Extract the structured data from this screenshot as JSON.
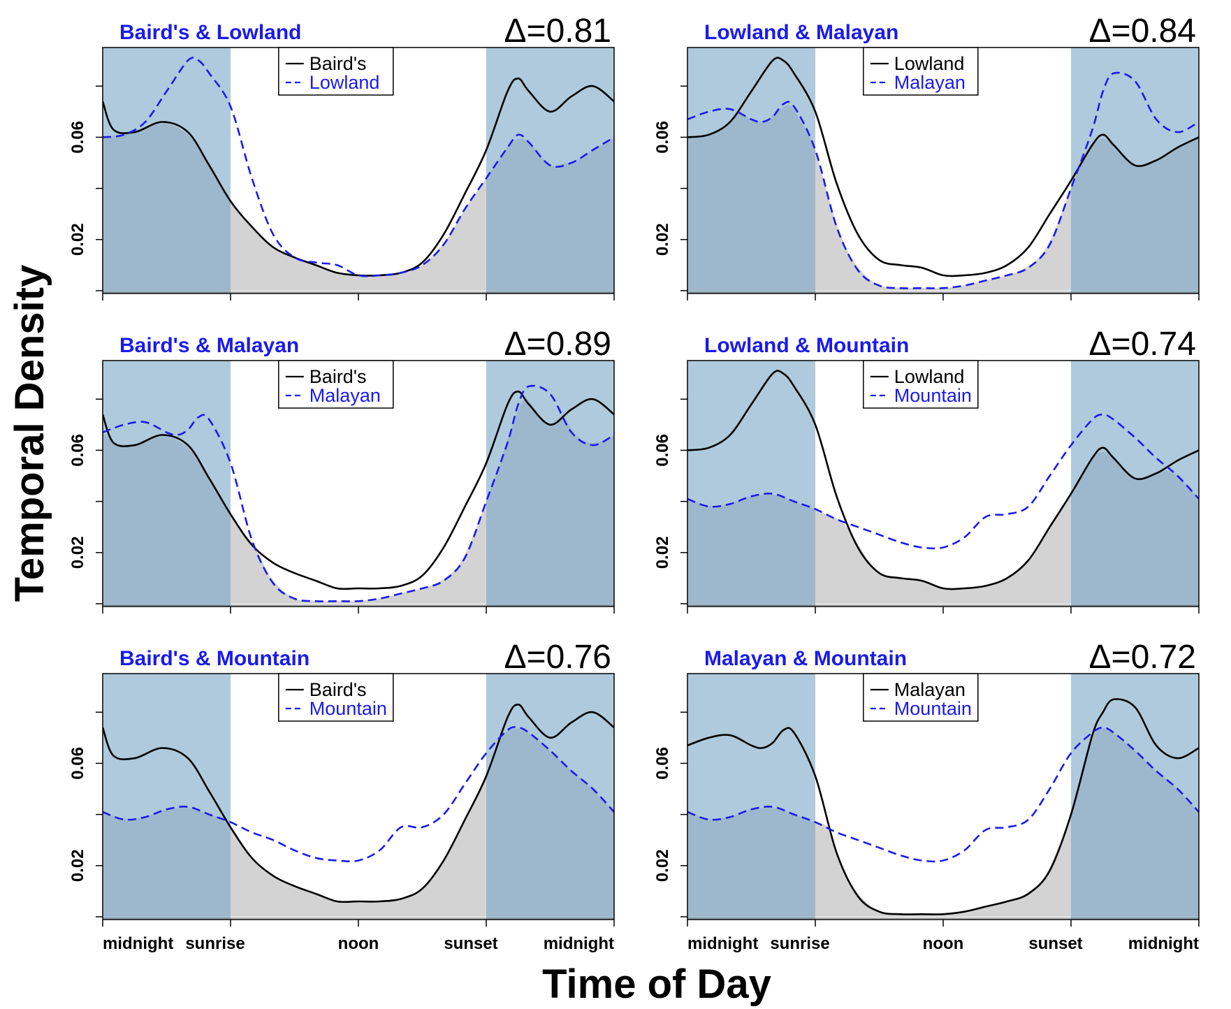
{
  "figure": {
    "ylabel": "Temporal Density",
    "xlabel": "Time of Day",
    "x_tick_labels": [
      "midnight",
      "sunrise",
      "noon",
      "sunset",
      "midnight"
    ],
    "y_tick_labels": [
      "0.02",
      "0.06"
    ]
  },
  "colors": {
    "night_shade": "#aecadc",
    "overlap_fill": "#d3d3d3",
    "overlap_night": "#9db8cc",
    "line1": "#000000",
    "line2": "#1a1aee",
    "title": "#1a1aee"
  },
  "chart_data": [
    {
      "type": "line",
      "title": "Baird's & Lowland",
      "annotation": "Δ=0.81",
      "legend_position": "top-center",
      "x_ticks": [
        0,
        6,
        12,
        18,
        24
      ],
      "x_tick_labels": [
        "midnight",
        "sunrise",
        "noon",
        "sunset",
        "midnight"
      ],
      "y_ticks": [
        0.02,
        0.06
      ],
      "ylim": [
        0,
        0.094
      ],
      "night_shading": [
        [
          0,
          6
        ],
        [
          18,
          24
        ]
      ],
      "series": [
        {
          "name": "Baird's",
          "style": "solid",
          "x": [
            0,
            0.5,
            1.5,
            2.8,
            4,
            5,
            6,
            7,
            8,
            9,
            10,
            11,
            12,
            13,
            14,
            15,
            16,
            17,
            18,
            19,
            19.5,
            20,
            21,
            22,
            23,
            24
          ],
          "y": [
            0.074,
            0.063,
            0.062,
            0.066,
            0.062,
            0.049,
            0.035,
            0.025,
            0.017,
            0.013,
            0.01,
            0.007,
            0.006,
            0.006,
            0.007,
            0.011,
            0.022,
            0.038,
            0.055,
            0.078,
            0.083,
            0.078,
            0.07,
            0.076,
            0.08,
            0.074
          ]
        },
        {
          "name": "Lowland",
          "style": "dashed",
          "x": [
            0,
            1,
            2,
            3,
            4,
            4.5,
            5,
            6,
            7,
            8,
            9,
            10,
            11,
            12,
            13,
            14,
            15,
            16,
            17,
            18,
            19,
            19.5,
            20,
            21,
            22,
            23,
            24
          ],
          "y": [
            0.06,
            0.061,
            0.066,
            0.078,
            0.09,
            0.09,
            0.085,
            0.072,
            0.044,
            0.022,
            0.013,
            0.011,
            0.01,
            0.006,
            0.006,
            0.007,
            0.01,
            0.018,
            0.032,
            0.044,
            0.056,
            0.061,
            0.058,
            0.049,
            0.05,
            0.055,
            0.06
          ]
        }
      ]
    },
    {
      "type": "line",
      "title": "Lowland & Malayan",
      "annotation": "Δ=0.84",
      "legend_position": "top-center",
      "x_ticks": [
        0,
        6,
        12,
        18,
        24
      ],
      "x_tick_labels": [
        "midnight",
        "sunrise",
        "noon",
        "sunset",
        "midnight"
      ],
      "y_ticks": [
        0.02,
        0.06
      ],
      "ylim": [
        0,
        0.094
      ],
      "night_shading": [
        [
          0,
          6
        ],
        [
          18,
          24
        ]
      ],
      "series": [
        {
          "name": "Lowland",
          "style": "solid",
          "x": [
            0,
            1,
            2,
            3,
            4,
            4.5,
            5,
            6,
            7,
            8,
            9,
            10,
            11,
            12,
            13,
            14,
            15,
            16,
            17,
            18,
            19,
            19.5,
            20,
            21,
            22,
            23,
            24
          ],
          "y": [
            0.06,
            0.061,
            0.066,
            0.078,
            0.09,
            0.09,
            0.085,
            0.07,
            0.042,
            0.022,
            0.012,
            0.01,
            0.009,
            0.006,
            0.006,
            0.007,
            0.01,
            0.017,
            0.03,
            0.043,
            0.057,
            0.061,
            0.057,
            0.049,
            0.051,
            0.056,
            0.06
          ]
        },
        {
          "name": "Malayan",
          "style": "dashed",
          "x": [
            0,
            1,
            2,
            3,
            3.5,
            4,
            4.5,
            5,
            6,
            7,
            8,
            9,
            10,
            11,
            12,
            13,
            14,
            15,
            16,
            17,
            18,
            19,
            19.5,
            20,
            21,
            22,
            23,
            24
          ],
          "y": [
            0.067,
            0.07,
            0.071,
            0.067,
            0.066,
            0.068,
            0.073,
            0.072,
            0.055,
            0.025,
            0.008,
            0.002,
            0.001,
            0.001,
            0.001,
            0.002,
            0.004,
            0.006,
            0.009,
            0.018,
            0.04,
            0.063,
            0.078,
            0.085,
            0.082,
            0.067,
            0.062,
            0.066
          ]
        }
      ]
    },
    {
      "type": "line",
      "title": "Baird's & Malayan",
      "annotation": "Δ=0.89",
      "legend_position": "top-center",
      "x_ticks": [
        0,
        6,
        12,
        18,
        24
      ],
      "x_tick_labels": [
        "midnight",
        "sunrise",
        "noon",
        "sunset",
        "midnight"
      ],
      "y_ticks": [
        0.02,
        0.06
      ],
      "ylim": [
        0,
        0.094
      ],
      "night_shading": [
        [
          0,
          6
        ],
        [
          18,
          24
        ]
      ],
      "series": [
        {
          "name": "Baird's",
          "style": "solid",
          "x": [
            0,
            0.5,
            1.5,
            2.8,
            4,
            5,
            6,
            7,
            8,
            9,
            10,
            11,
            12,
            13,
            14,
            15,
            16,
            17,
            18,
            19,
            19.5,
            20,
            21,
            22,
            23,
            24
          ],
          "y": [
            0.074,
            0.063,
            0.062,
            0.066,
            0.062,
            0.049,
            0.035,
            0.023,
            0.016,
            0.012,
            0.009,
            0.006,
            0.006,
            0.006,
            0.007,
            0.011,
            0.022,
            0.038,
            0.055,
            0.078,
            0.083,
            0.078,
            0.07,
            0.076,
            0.08,
            0.074
          ]
        },
        {
          "name": "Malayan",
          "style": "dashed",
          "x": [
            0,
            1,
            2,
            3,
            3.5,
            4,
            4.5,
            5,
            6,
            7,
            8,
            9,
            10,
            11,
            12,
            13,
            14,
            15,
            16,
            17,
            18,
            19,
            19.5,
            20,
            21,
            22,
            23,
            24
          ],
          "y": [
            0.067,
            0.07,
            0.071,
            0.067,
            0.066,
            0.068,
            0.073,
            0.072,
            0.055,
            0.025,
            0.008,
            0.002,
            0.001,
            0.001,
            0.001,
            0.002,
            0.004,
            0.006,
            0.009,
            0.018,
            0.04,
            0.063,
            0.078,
            0.085,
            0.082,
            0.067,
            0.062,
            0.066
          ]
        }
      ]
    },
    {
      "type": "line",
      "title": "Lowland & Mountain",
      "annotation": "Δ=0.74",
      "legend_position": "top-center",
      "x_ticks": [
        0,
        6,
        12,
        18,
        24
      ],
      "x_tick_labels": [
        "midnight",
        "sunrise",
        "noon",
        "sunset",
        "midnight"
      ],
      "y_ticks": [
        0.02,
        0.06
      ],
      "ylim": [
        0,
        0.094
      ],
      "night_shading": [
        [
          0,
          6
        ],
        [
          18,
          24
        ]
      ],
      "series": [
        {
          "name": "Lowland",
          "style": "solid",
          "x": [
            0,
            1,
            2,
            3,
            4,
            4.5,
            5,
            6,
            7,
            8,
            9,
            10,
            11,
            12,
            13,
            14,
            15,
            16,
            17,
            18,
            19,
            19.5,
            20,
            21,
            22,
            23,
            24
          ],
          "y": [
            0.06,
            0.061,
            0.066,
            0.078,
            0.09,
            0.09,
            0.085,
            0.07,
            0.042,
            0.022,
            0.012,
            0.01,
            0.009,
            0.006,
            0.006,
            0.007,
            0.01,
            0.017,
            0.03,
            0.043,
            0.057,
            0.061,
            0.057,
            0.049,
            0.051,
            0.056,
            0.06
          ]
        },
        {
          "name": "Mountain",
          "style": "dashed",
          "x": [
            0,
            1,
            2,
            3,
            4,
            5,
            6,
            7,
            8,
            9,
            10,
            11,
            12,
            13,
            14,
            15,
            16,
            17,
            18,
            19,
            19.5,
            20,
            21,
            22,
            23,
            24
          ],
          "y": [
            0.041,
            0.038,
            0.039,
            0.042,
            0.043,
            0.04,
            0.037,
            0.033,
            0.03,
            0.027,
            0.024,
            0.022,
            0.022,
            0.026,
            0.034,
            0.035,
            0.038,
            0.05,
            0.062,
            0.072,
            0.074,
            0.072,
            0.065,
            0.057,
            0.05,
            0.041
          ]
        }
      ]
    },
    {
      "type": "line",
      "title": "Baird's & Mountain",
      "annotation": "Δ=0.76",
      "legend_position": "top-center",
      "x_ticks": [
        0,
        6,
        12,
        18,
        24
      ],
      "x_tick_labels": [
        "midnight",
        "sunrise",
        "noon",
        "sunset",
        "midnight"
      ],
      "y_ticks": [
        0.02,
        0.06
      ],
      "ylim": [
        0,
        0.094
      ],
      "night_shading": [
        [
          0,
          6
        ],
        [
          18,
          24
        ]
      ],
      "series": [
        {
          "name": "Baird's",
          "style": "solid",
          "x": [
            0,
            0.5,
            1.5,
            2.8,
            4,
            5,
            6,
            7,
            8,
            9,
            10,
            11,
            12,
            13,
            14,
            15,
            16,
            17,
            18,
            19,
            19.5,
            20,
            21,
            22,
            23,
            24
          ],
          "y": [
            0.074,
            0.063,
            0.062,
            0.066,
            0.062,
            0.049,
            0.035,
            0.023,
            0.016,
            0.012,
            0.009,
            0.006,
            0.006,
            0.006,
            0.007,
            0.011,
            0.022,
            0.038,
            0.055,
            0.078,
            0.083,
            0.078,
            0.07,
            0.076,
            0.08,
            0.074
          ]
        },
        {
          "name": "Mountain",
          "style": "dashed",
          "x": [
            0,
            1,
            2,
            3,
            4,
            5,
            6,
            7,
            8,
            9,
            10,
            11,
            12,
            13,
            14,
            15,
            16,
            17,
            18,
            19,
            19.5,
            20,
            21,
            22,
            23,
            24
          ],
          "y": [
            0.041,
            0.038,
            0.039,
            0.042,
            0.043,
            0.04,
            0.037,
            0.033,
            0.03,
            0.026,
            0.023,
            0.022,
            0.022,
            0.026,
            0.035,
            0.035,
            0.04,
            0.052,
            0.064,
            0.073,
            0.074,
            0.072,
            0.065,
            0.057,
            0.05,
            0.041
          ]
        }
      ]
    },
    {
      "type": "line",
      "title": "Malayan & Mountain",
      "annotation": "Δ=0.72",
      "legend_position": "top-center",
      "x_ticks": [
        0,
        6,
        12,
        18,
        24
      ],
      "x_tick_labels": [
        "midnight",
        "sunrise",
        "noon",
        "sunset",
        "midnight"
      ],
      "y_ticks": [
        0.02,
        0.06
      ],
      "ylim": [
        0,
        0.094
      ],
      "night_shading": [
        [
          0,
          6
        ],
        [
          18,
          24
        ]
      ],
      "series": [
        {
          "name": "Malayan",
          "style": "solid",
          "x": [
            0,
            1,
            2,
            3,
            3.5,
            4,
            4.5,
            5,
            6,
            7,
            8,
            9,
            10,
            11,
            12,
            13,
            14,
            15,
            16,
            17,
            18,
            19,
            19.5,
            20,
            21,
            22,
            23,
            24
          ],
          "y": [
            0.067,
            0.07,
            0.071,
            0.067,
            0.066,
            0.068,
            0.073,
            0.072,
            0.055,
            0.025,
            0.008,
            0.002,
            0.001,
            0.001,
            0.001,
            0.002,
            0.004,
            0.006,
            0.009,
            0.018,
            0.04,
            0.071,
            0.08,
            0.085,
            0.082,
            0.067,
            0.062,
            0.066
          ]
        },
        {
          "name": "Mountain",
          "style": "dashed",
          "x": [
            0,
            1,
            2,
            3,
            4,
            5,
            6,
            7,
            8,
            9,
            10,
            11,
            12,
            13,
            14,
            15,
            16,
            17,
            18,
            19,
            19.5,
            20,
            21,
            22,
            23,
            24
          ],
          "y": [
            0.041,
            0.038,
            0.039,
            0.042,
            0.043,
            0.04,
            0.037,
            0.033,
            0.03,
            0.027,
            0.024,
            0.022,
            0.022,
            0.026,
            0.034,
            0.035,
            0.038,
            0.05,
            0.064,
            0.072,
            0.074,
            0.072,
            0.065,
            0.057,
            0.05,
            0.041
          ]
        }
      ]
    }
  ]
}
